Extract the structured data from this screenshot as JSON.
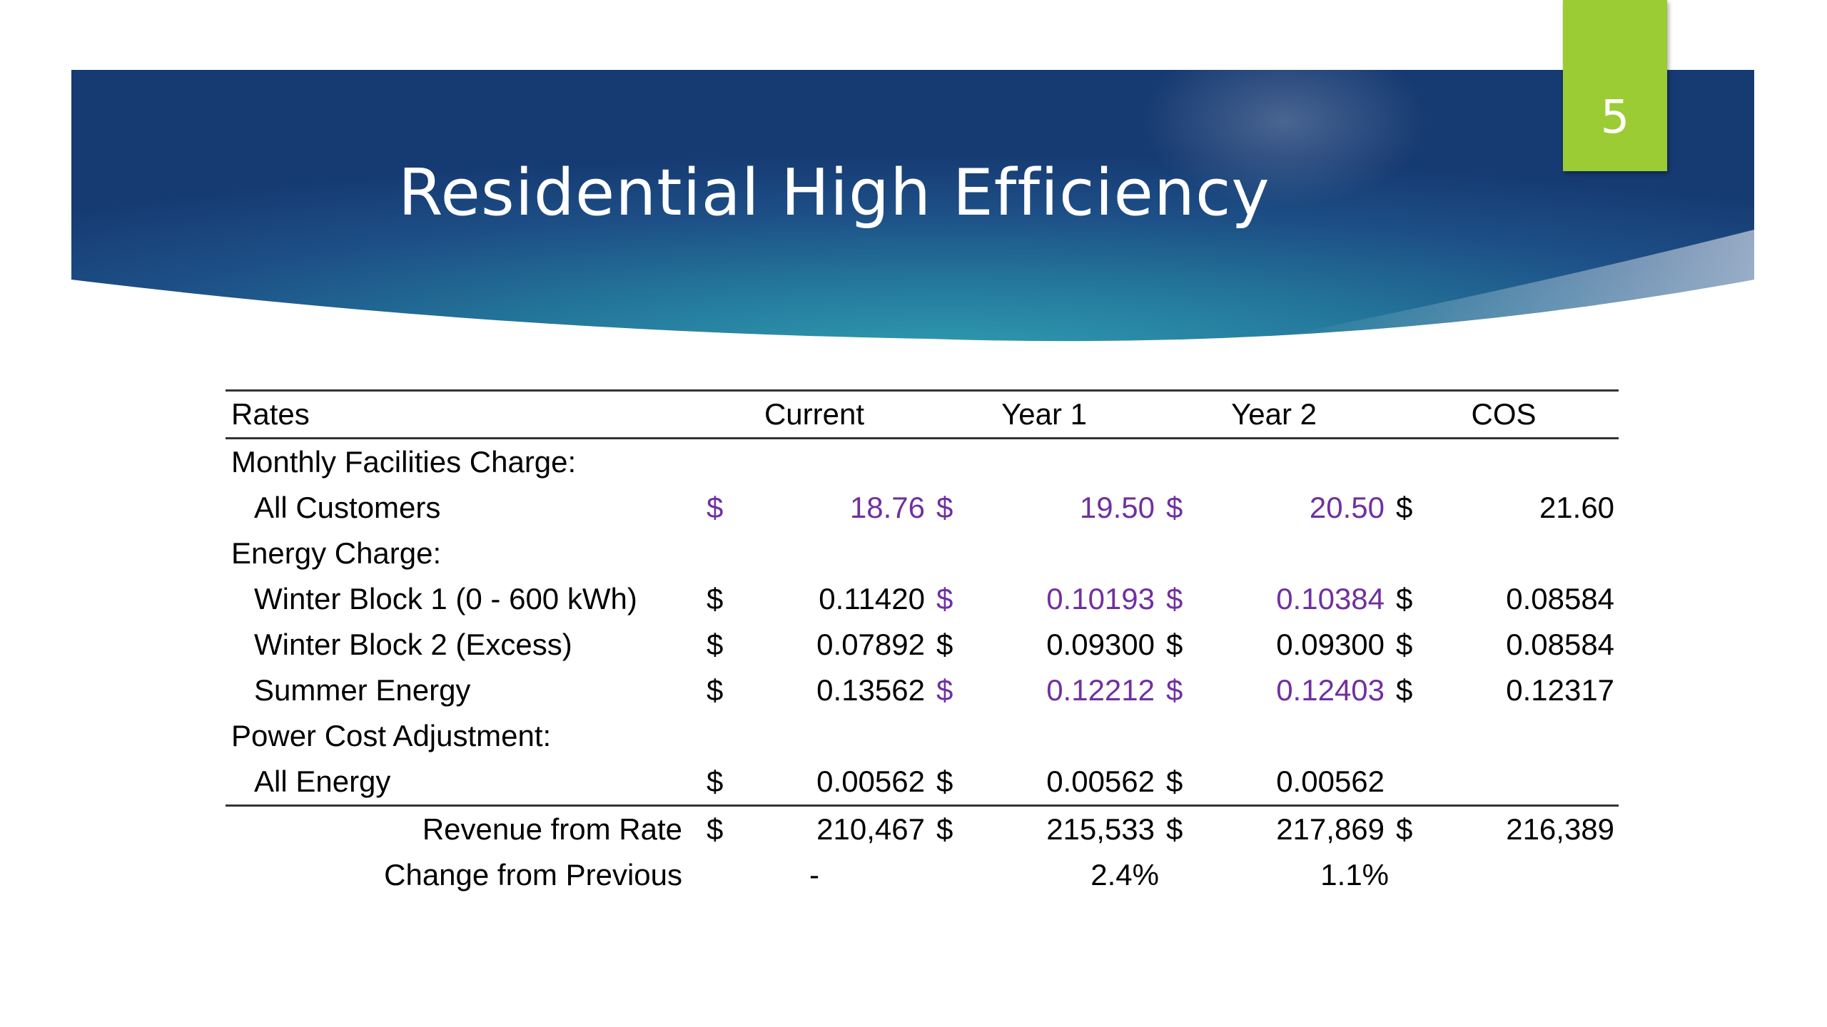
{
  "slide": {
    "title": "Residential High Efficiency",
    "page_number": "5",
    "colors": {
      "banner_dark": "#1b3f78",
      "banner_teal": "#2b8fa5",
      "tab_green": "#9bcc33",
      "highlight_purple": "#7030a0"
    }
  },
  "table": {
    "header": {
      "label": "Rates",
      "columns": [
        "Current",
        "Year 1",
        "Year 2",
        "COS"
      ]
    },
    "rows": [
      {
        "label": "Monthly Facilities Charge:",
        "cells": []
      },
      {
        "label": "All Customers",
        "cells": [
          {
            "sign": "$",
            "value": "18.76",
            "highlight": true
          },
          {
            "sign": "$",
            "value": "19.50",
            "highlight": true
          },
          {
            "sign": "$",
            "value": "20.50",
            "highlight": true
          },
          {
            "sign": "$",
            "value": "21.60",
            "highlight": false
          }
        ]
      },
      {
        "label": "Energy Charge:",
        "cells": []
      },
      {
        "label": "Winter Block 1 (0 - 600 kWh)",
        "cells": [
          {
            "sign": "$",
            "value": "0.11420",
            "highlight": false
          },
          {
            "sign": "$",
            "value": "0.10193",
            "highlight": true
          },
          {
            "sign": "$",
            "value": "0.10384",
            "highlight": true
          },
          {
            "sign": "$",
            "value": "0.08584",
            "highlight": false
          }
        ]
      },
      {
        "label": "Winter Block 2 (Excess)",
        "cells": [
          {
            "sign": "$",
            "value": "0.07892",
            "highlight": false
          },
          {
            "sign": "$",
            "value": "0.09300",
            "highlight": false
          },
          {
            "sign": "$",
            "value": "0.09300",
            "highlight": false
          },
          {
            "sign": "$",
            "value": "0.08584",
            "highlight": false
          }
        ]
      },
      {
        "label": "Summer Energy",
        "cells": [
          {
            "sign": "$",
            "value": "0.13562",
            "highlight": false
          },
          {
            "sign": "$",
            "value": "0.12212",
            "highlight": true
          },
          {
            "sign": "$",
            "value": "0.12403",
            "highlight": true
          },
          {
            "sign": "$",
            "value": "0.12317",
            "highlight": false
          }
        ]
      },
      {
        "label": "Power Cost Adjustment:",
        "cells": []
      },
      {
        "label": "All Energy",
        "cells": [
          {
            "sign": "$",
            "value": "0.00562",
            "highlight": false
          },
          {
            "sign": "$",
            "value": "0.00562",
            "highlight": false
          },
          {
            "sign": "$",
            "value": "0.00562",
            "highlight": false
          },
          {
            "sign": "",
            "value": "",
            "highlight": false
          }
        ]
      },
      {
        "label": "Revenue from Rate",
        "cells": [
          {
            "sign": "$",
            "value": "210,467",
            "highlight": false
          },
          {
            "sign": "$",
            "value": "215,533",
            "highlight": false
          },
          {
            "sign": "$",
            "value": "217,869",
            "highlight": false
          },
          {
            "sign": "$",
            "value": "216,389",
            "highlight": false
          }
        ]
      },
      {
        "label": "Change from Previous",
        "cells": [
          {
            "sign": "",
            "value": "-",
            "highlight": false
          },
          {
            "sign": "",
            "value": "2.4%",
            "highlight": false
          },
          {
            "sign": "",
            "value": "1.1%",
            "highlight": false
          },
          {
            "sign": "",
            "value": "",
            "highlight": false
          }
        ]
      }
    ]
  }
}
